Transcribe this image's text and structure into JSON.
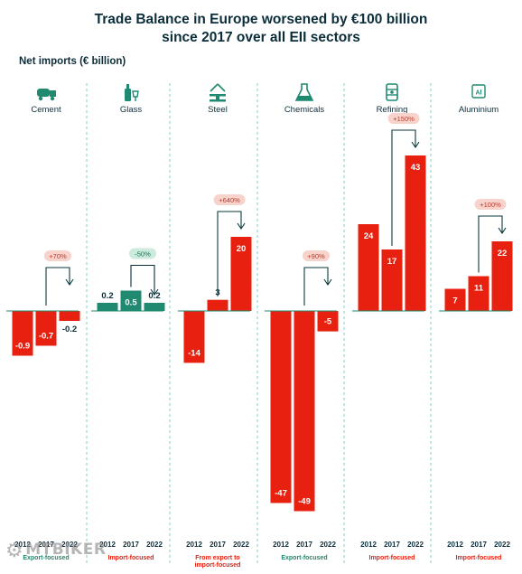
{
  "title_lines": [
    "Trade Balance in Europe worsened by €100 billion",
    "since 2017 over all EII sectors"
  ],
  "y_axis_label": "Net imports (€ billion)",
  "watermark": "MTBIKER",
  "colors": {
    "negative": "#e8200f",
    "positive": "#e8200f",
    "teal": "#1f8a70",
    "change_up_bg": "#f8d3cc",
    "change_up_text": "#c0392b",
    "change_down_bg": "#cdebdc",
    "change_down_text": "#1f6e55",
    "focus_export": "#1f8a70",
    "focus_import": "#e8200f",
    "divider": "#7fd0c4"
  },
  "chart_data": {
    "type": "bar",
    "title": "Trade Balance in Europe worsened by €100 billion since 2017 over all EII sectors",
    "ylabel": "Net imports (€ billion)",
    "categories": [
      "2012",
      "2017",
      "2022"
    ],
    "panels": [
      {
        "name": "Cement",
        "icon": "cement-mixer-icon",
        "values": [
          -0.9,
          -0.7,
          -0.2
        ],
        "labels": [
          "-0.9",
          "-0.7",
          "-0.2"
        ],
        "bar_colors": [
          "#e8200f",
          "#e8200f",
          "#e8200f"
        ],
        "change": "+70%",
        "change_dir": "up",
        "focus": "Export-focused",
        "focus_color": "#1f8a70",
        "scale": 55
      },
      {
        "name": "Glass",
        "icon": "bottle-glass-icon",
        "values": [
          0.2,
          0.5,
          0.2
        ],
        "labels": [
          "0.2",
          "0.5",
          "0.2"
        ],
        "bar_colors": [
          "#1f8a70",
          "#1f8a70",
          "#1f8a70"
        ],
        "change": "-50%",
        "change_dir": "down",
        "focus": "Import-focused",
        "focus_color": "#e8200f",
        "scale": 45
      },
      {
        "name": "Steel",
        "icon": "steel-beam-icon",
        "values": [
          -14,
          3,
          20
        ],
        "labels": [
          "-14",
          "3",
          "20"
        ],
        "bar_colors": [
          "#e8200f",
          "#e8200f",
          "#e8200f"
        ],
        "change": "+640%",
        "change_dir": "up",
        "focus": "From export to\nimport-focused",
        "focus_color": "#e8200f",
        "scale": 4.1
      },
      {
        "name": "Chemicals",
        "icon": "flask-icon",
        "values": [
          -47,
          -49,
          -5
        ],
        "labels": [
          "-47",
          "-49",
          "-5"
        ],
        "bar_colors": [
          "#e8200f",
          "#e8200f",
          "#e8200f"
        ],
        "change": "+90%",
        "change_dir": "up",
        "focus": "Export-focused",
        "focus_color": "#1f8a70",
        "scale": 4.52
      },
      {
        "name": "Refining",
        "icon": "oil-barrel-icon",
        "values": [
          24,
          17,
          43
        ],
        "labels": [
          "24",
          "17",
          "43"
        ],
        "bar_colors": [
          "#e8200f",
          "#e8200f",
          "#e8200f"
        ],
        "change": "+150%",
        "change_dir": "up",
        "focus": "Import-focused",
        "focus_color": "#e8200f",
        "scale": 4.0
      },
      {
        "name": "Aluminium",
        "icon": "aluminium-element-icon",
        "values": [
          7,
          11,
          22
        ],
        "labels": [
          "7",
          "11",
          "22"
        ],
        "bar_colors": [
          "#e8200f",
          "#e8200f",
          "#e8200f"
        ],
        "change": "+100%",
        "change_dir": "up",
        "focus": "Import-focused",
        "focus_color": "#e8200f",
        "scale": 3.5
      }
    ]
  }
}
